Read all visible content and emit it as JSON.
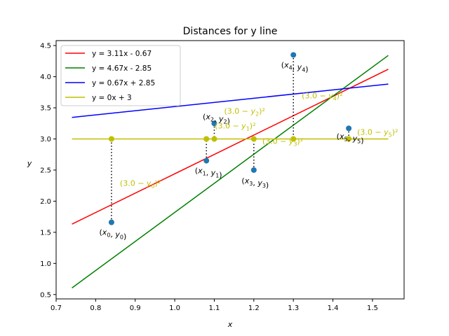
{
  "chart_data": {
    "type": "line",
    "title": "Distances for y line",
    "xlabel": "x",
    "ylabel": "y",
    "xlim": [
      0.7,
      1.58
    ],
    "ylim": [
      0.43,
      4.58
    ],
    "x_ticks": [
      0.7,
      0.8,
      0.9,
      1.0,
      1.1,
      1.2,
      1.3,
      1.4,
      1.5
    ],
    "y_ticks": [
      0.5,
      1.0,
      1.5,
      2.0,
      2.5,
      3.0,
      3.5,
      4.0,
      4.5
    ],
    "x_tick_labels": [
      "0.7",
      "0.8",
      "0.9",
      "1.0",
      "1.1",
      "1.2",
      "1.3",
      "1.4",
      "1.5"
    ],
    "y_tick_labels": [
      "0.5",
      "1.0",
      "1.5",
      "2.0",
      "2.5",
      "3.0",
      "3.5",
      "4.0",
      "4.5"
    ],
    "grid": false,
    "legend_position": "top-left",
    "lines": [
      {
        "name": "y = 3.11x - 0.67",
        "slope": 3.11,
        "intercept": -0.67,
        "x_range": [
          0.74,
          1.54
        ],
        "color": "#ff0000"
      },
      {
        "name": "y = 4.67x - 2.85",
        "slope": 4.67,
        "intercept": -2.85,
        "x_range": [
          0.74,
          1.54
        ],
        "color": "#008000"
      },
      {
        "name": "y = 0.67x + 2.85",
        "slope": 0.67,
        "intercept": 2.85,
        "x_range": [
          0.74,
          1.54
        ],
        "color": "#0000ff"
      },
      {
        "name": "y = 0x + 3",
        "slope": 0,
        "intercept": 3,
        "x_range": [
          0.74,
          1.54
        ],
        "color": "#bfbf00"
      }
    ],
    "points": [
      {
        "x": 0.84,
        "y": 1.66,
        "label": "(x0, y0)",
        "projected_y": 3.0,
        "distance_label": "(3.0 − y0)²"
      },
      {
        "x": 1.08,
        "y": 2.65,
        "label": "(x1, y1)",
        "projected_y": 3.0,
        "distance_label": "(3.0 − y1)²"
      },
      {
        "x": 1.1,
        "y": 3.25,
        "label": "(x2, y2)",
        "projected_y": 3.0,
        "distance_label": "(3.0 − y2)²"
      },
      {
        "x": 1.2,
        "y": 2.5,
        "label": "(x3, y3)",
        "projected_y": 3.0,
        "distance_label": "(3.0 − y3)²"
      },
      {
        "x": 1.3,
        "y": 4.35,
        "label": "(x4, y4)",
        "projected_y": 3.0,
        "distance_label": "(3.0 − y4)²"
      },
      {
        "x": 1.44,
        "y": 3.17,
        "label": "(x5, y5)",
        "projected_y": 3.0,
        "distance_label": "(3.0 − y5)²"
      }
    ],
    "colors": {
      "points": "#1f77b4",
      "projection": "#bfbf00",
      "distance_line": "#000000"
    }
  }
}
